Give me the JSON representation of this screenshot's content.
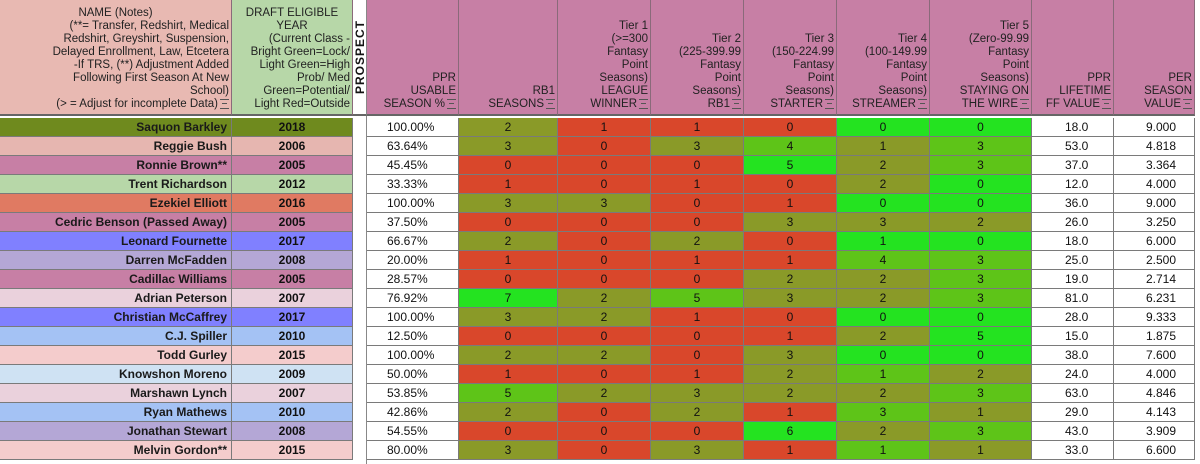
{
  "headers": {
    "name": [
      "NAME (Notes)",
      "(**= Transfer, Redshirt, Medical",
      "Redshirt, Greyshirt, Suspension,",
      "Delayed Enrollment, Law, Etcetera",
      "-If TRS, (**) Adjustment Added",
      "Following First Season At New",
      "School)",
      "(> = Adjust for incomplete Data)"
    ],
    "draft": [
      "DRAFT ELIGIBLE",
      "YEAR",
      "(Current Class -",
      "Bright Green=Lock/",
      "Light Green=High",
      "Prob/ Med",
      "Green=Potential/",
      "Light Red=Outside"
    ],
    "prospect": "PROSPECT",
    "ppr_usable": [
      "PPR",
      "USABLE",
      "SEASON %"
    ],
    "rb1": [
      "RB1",
      "SEASONS"
    ],
    "tier1": [
      "Tier 1",
      "(>=300",
      "Fantasy",
      "Point",
      "Seasons)",
      "LEAGUE",
      "WINNER"
    ],
    "tier2": [
      "Tier 2",
      "(225-399.99",
      "Fantasy",
      "Point",
      "Seasons)",
      "RB1"
    ],
    "tier3": [
      "Tier 3",
      "(150-224.99",
      "Fantasy",
      "Point",
      "Seasons)",
      "STARTER"
    ],
    "tier4": [
      "Tier 4",
      "(100-149.99",
      "Fantasy",
      "Point",
      "Seasons)",
      "STREAMER"
    ],
    "tier5": [
      "Tier 5",
      "(Zero-99.99",
      "Fantasy",
      "Point",
      "Seasons)",
      "STAYING ON",
      "THE WIRE"
    ],
    "lifetime": [
      "PPR",
      "LIFETIME",
      "FF VALUE"
    ],
    "season": [
      "PER",
      "SEASON",
      "VALUE"
    ]
  },
  "colors": {
    "header_bg": "#c77fa5",
    "header_name_bg": "#e8b9b2",
    "header_draft_bg": "#b7d7a8",
    "dark_green": "#6f9e22",
    "red": "#d9472b",
    "olive": "#8a9a28",
    "bright_green": "#24e320",
    "mid_green": "#5ec418"
  },
  "players": [
    {
      "name": "Saquon Barkley",
      "year": "2018",
      "pct": "100.00%",
      "rb1": "2",
      "t1": "1",
      "t2": "1",
      "t3": "0",
      "t4": "0",
      "t5": "0",
      "life": "18.0",
      "per": "9.000",
      "row_color": "#6f8a1e",
      "cells": [
        "olive",
        "red",
        "red",
        "red",
        "bright",
        "bright"
      ]
    },
    {
      "name": "Reggie Bush",
      "year": "2006",
      "pct": "63.64%",
      "rb1": "3",
      "t1": "0",
      "t2": "3",
      "t3": "4",
      "t4": "1",
      "t5": "3",
      "life": "53.0",
      "per": "4.818",
      "row_color": "#e6b6b0",
      "cells": [
        "olive",
        "red",
        "olive",
        "mid",
        "olive",
        "mid"
      ]
    },
    {
      "name": "Ronnie Brown**",
      "year": "2005",
      "pct": "45.45%",
      "rb1": "0",
      "t1": "0",
      "t2": "0",
      "t3": "5",
      "t4": "2",
      "t5": "3",
      "life": "37.0",
      "per": "3.364",
      "row_color": "#c77fa5",
      "cells": [
        "red",
        "red",
        "red",
        "bright",
        "olive",
        "mid"
      ]
    },
    {
      "name": "Trent Richardson",
      "year": "2012",
      "pct": "33.33%",
      "rb1": "1",
      "t1": "0",
      "t2": "1",
      "t3": "0",
      "t4": "2",
      "t5": "0",
      "life": "12.0",
      "per": "4.000",
      "row_color": "#b7d7a8",
      "cells": [
        "red",
        "red",
        "red",
        "red",
        "olive",
        "bright"
      ]
    },
    {
      "name": "Ezekiel Elliott",
      "year": "2016",
      "pct": "100.00%",
      "rb1": "3",
      "t1": "3",
      "t2": "0",
      "t3": "1",
      "t4": "0",
      "t5": "0",
      "life": "36.0",
      "per": "9.000",
      "row_color": "#e07a62",
      "cells": [
        "olive",
        "olive",
        "red",
        "red",
        "bright",
        "bright"
      ]
    },
    {
      "name": "Cedric Benson (Passed Away)",
      "year": "2005",
      "pct": "37.50%",
      "rb1": "0",
      "t1": "0",
      "t2": "0",
      "t3": "3",
      "t4": "3",
      "t5": "2",
      "life": "26.0",
      "per": "3.250",
      "row_color": "#c77fa5",
      "cells": [
        "red",
        "red",
        "red",
        "olive",
        "olive",
        "olive"
      ]
    },
    {
      "name": "Leonard Fournette",
      "year": "2017",
      "pct": "66.67%",
      "rb1": "2",
      "t1": "0",
      "t2": "2",
      "t3": "0",
      "t4": "1",
      "t5": "0",
      "life": "18.0",
      "per": "6.000",
      "row_color": "#8080ff",
      "cells": [
        "olive",
        "red",
        "olive",
        "red",
        "bright",
        "bright"
      ]
    },
    {
      "name": "Darren McFadden",
      "year": "2008",
      "pct": "20.00%",
      "rb1": "1",
      "t1": "0",
      "t2": "1",
      "t3": "1",
      "t4": "4",
      "t5": "3",
      "life": "25.0",
      "per": "2.500",
      "row_color": "#b4a7d6",
      "cells": [
        "red",
        "red",
        "red",
        "red",
        "mid",
        "mid"
      ]
    },
    {
      "name": "Cadillac Williams",
      "year": "2005",
      "pct": "28.57%",
      "rb1": "0",
      "t1": "0",
      "t2": "0",
      "t3": "2",
      "t4": "2",
      "t5": "3",
      "life": "19.0",
      "per": "2.714",
      "row_color": "#c77fa5",
      "cells": [
        "red",
        "red",
        "red",
        "olive",
        "olive",
        "mid"
      ]
    },
    {
      "name": "Adrian Peterson",
      "year": "2007",
      "pct": "76.92%",
      "rb1": "7",
      "t1": "2",
      "t2": "5",
      "t3": "3",
      "t4": "2",
      "t5": "3",
      "life": "81.0",
      "per": "6.231",
      "row_color": "#ead1dc",
      "cells": [
        "bright",
        "olive",
        "mid",
        "olive",
        "olive",
        "mid"
      ]
    },
    {
      "name": "Christian McCaffrey",
      "year": "2017",
      "pct": "100.00%",
      "rb1": "3",
      "t1": "2",
      "t2": "1",
      "t3": "0",
      "t4": "0",
      "t5": "0",
      "life": "28.0",
      "per": "9.333",
      "row_color": "#8080ff",
      "cells": [
        "olive",
        "olive",
        "red",
        "red",
        "bright",
        "bright"
      ]
    },
    {
      "name": "C.J. Spiller",
      "year": "2010",
      "pct": "12.50%",
      "rb1": "0",
      "t1": "0",
      "t2": "0",
      "t3": "1",
      "t4": "2",
      "t5": "5",
      "life": "15.0",
      "per": "1.875",
      "row_color": "#a4c2f4",
      "cells": [
        "red",
        "red",
        "red",
        "red",
        "olive",
        "bright"
      ]
    },
    {
      "name": "Todd Gurley",
      "year": "2015",
      "pct": "100.00%",
      "rb1": "2",
      "t1": "2",
      "t2": "0",
      "t3": "3",
      "t4": "0",
      "t5": "0",
      "life": "38.0",
      "per": "7.600",
      "row_color": "#f4cccc",
      "cells": [
        "olive",
        "olive",
        "red",
        "olive",
        "bright",
        "bright"
      ]
    },
    {
      "name": "Knowshon Moreno",
      "year": "2009",
      "pct": "50.00%",
      "rb1": "1",
      "t1": "0",
      "t2": "1",
      "t3": "2",
      "t4": "1",
      "t5": "2",
      "life": "24.0",
      "per": "4.000",
      "row_color": "#cfe2f3",
      "cells": [
        "red",
        "red",
        "red",
        "olive",
        "mid",
        "olive"
      ]
    },
    {
      "name": "Marshawn Lynch",
      "year": "2007",
      "pct": "53.85%",
      "rb1": "5",
      "t1": "2",
      "t2": "3",
      "t3": "2",
      "t4": "2",
      "t5": "3",
      "life": "63.0",
      "per": "4.846",
      "row_color": "#ead1dc",
      "cells": [
        "mid",
        "olive",
        "olive",
        "olive",
        "olive",
        "mid"
      ]
    },
    {
      "name": "Ryan Mathews",
      "year": "2010",
      "pct": "42.86%",
      "rb1": "2",
      "t1": "0",
      "t2": "2",
      "t3": "1",
      "t4": "3",
      "t5": "1",
      "life": "29.0",
      "per": "4.143",
      "row_color": "#a4c2f4",
      "cells": [
        "olive",
        "red",
        "olive",
        "red",
        "mid",
        "olive"
      ]
    },
    {
      "name": "Jonathan Stewart",
      "year": "2008",
      "pct": "54.55%",
      "rb1": "0",
      "t1": "0",
      "t2": "0",
      "t3": "6",
      "t4": "2",
      "t5": "3",
      "life": "43.0",
      "per": "3.909",
      "row_color": "#b4a7d6",
      "cells": [
        "red",
        "red",
        "red",
        "bright",
        "olive",
        "mid"
      ]
    },
    {
      "name": "Melvin Gordon**",
      "year": "2015",
      "pct": "80.00%",
      "rb1": "3",
      "t1": "0",
      "t2": "3",
      "t3": "1",
      "t4": "1",
      "t5": "1",
      "life": "33.0",
      "per": "6.600",
      "row_color": "#f4cccc",
      "cells": [
        "olive",
        "red",
        "olive",
        "red",
        "mid",
        "olive"
      ]
    }
  ]
}
